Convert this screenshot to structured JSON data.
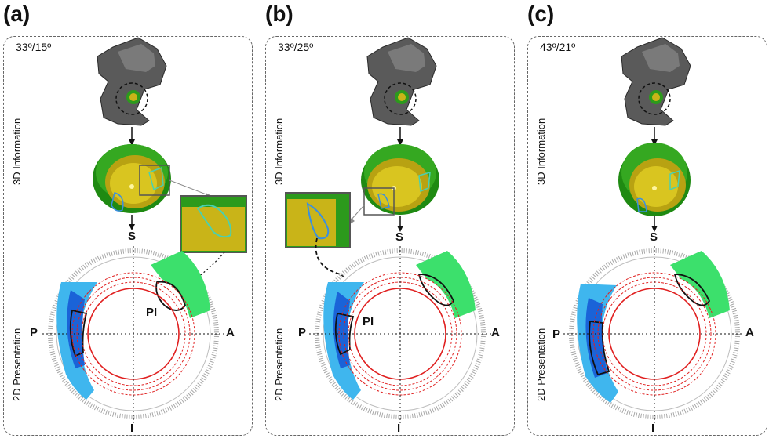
{
  "panels": [
    {
      "letter": "(a)",
      "angles": "33º/15º",
      "label_3d": "3D Information",
      "label_2d": "2D Presentation",
      "dir_s": "S",
      "dir_i": "I",
      "dir_p": "P",
      "dir_a": "A",
      "pi": "PI"
    },
    {
      "letter": "(b)",
      "angles": "33º/25º",
      "label_3d": "3D Information",
      "label_2d": "2D Presentation",
      "dir_s": "S",
      "dir_i": "I",
      "dir_p": "P",
      "dir_a": "A",
      "pi": "PI"
    },
    {
      "letter": "(c)",
      "angles": "43º/21º",
      "label_3d": "3D Information",
      "label_2d": "2D Presentation",
      "dir_s": "S",
      "dir_i": "I",
      "dir_p": "P",
      "dir_a": "A"
    }
  ],
  "colors": {
    "cup_green": "#2c9a1c",
    "liner_yellow": "#c9b418",
    "impingement_line": "#3a8fe0",
    "red_circle": "#e02020",
    "fringe_gray": "#a8a8a8",
    "blue_region": "#1a63d8",
    "light_blue": "#3fb6ee",
    "green_region": "#3ce06c"
  },
  "icons": [
    "pelvis-image",
    "acetabular-cup-3d",
    "zoom-inset",
    "arrow-down-icon",
    "polar-plot"
  ]
}
